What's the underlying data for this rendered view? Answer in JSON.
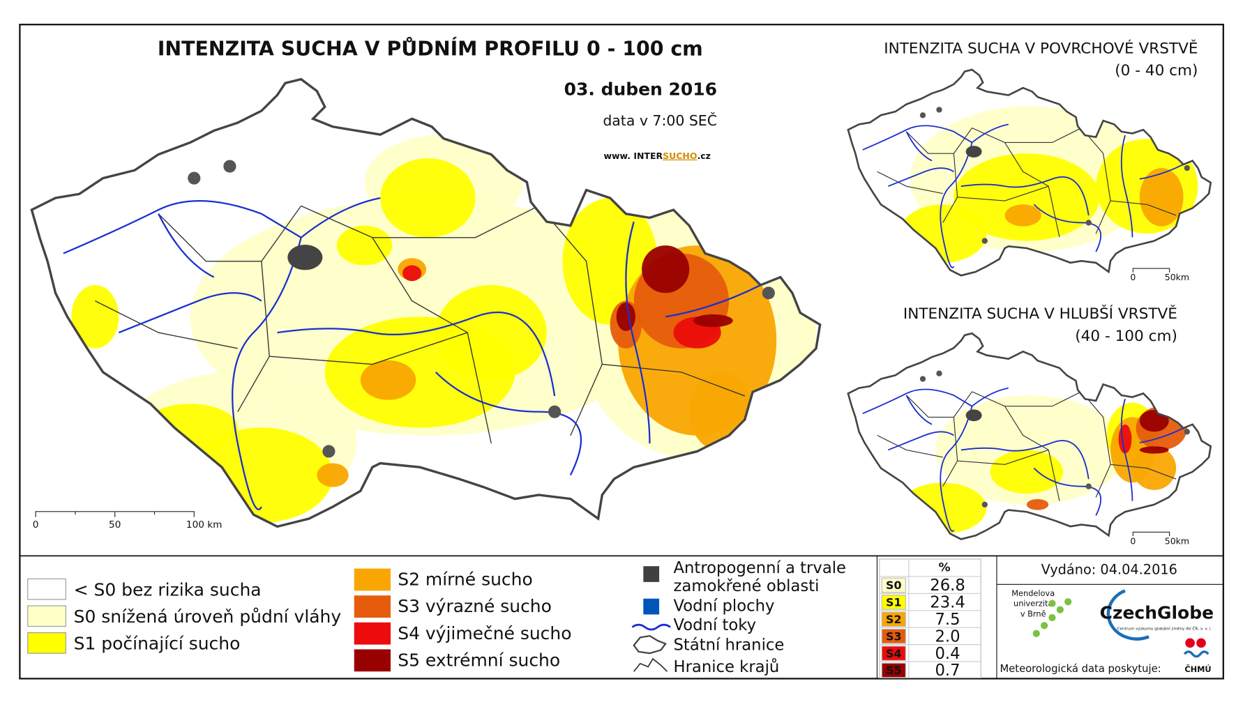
{
  "title": "INTENZITA SUCHA V PŮDNÍM PROFILU 0 - 100 cm",
  "date": "03. duben 2016",
  "time": "data v 7:00 SEČ",
  "website": {
    "prefix": "www. INTER",
    "highlight": "SUCHO",
    "suffix": ".cz"
  },
  "main_scale": [
    "0",
    "50",
    "100 km"
  ],
  "inset_top": {
    "title": "INTENZITA SUCHA V POVRCHOVÉ VRSTVĚ",
    "subtitle": "(0 - 40 cm)",
    "scale": [
      "0",
      "50km"
    ]
  },
  "inset_bottom": {
    "title": "INTENZITA SUCHA V HLUBŠÍ VRSTVĚ",
    "subtitle": "(40 - 100 cm)",
    "scale": [
      "0",
      "50km"
    ]
  },
  "legend_left": [
    {
      "label": "< S0 bez rizika sucha",
      "color": "#ffffff"
    },
    {
      "label": "S0 snížená úroveň půdní vláhy",
      "color": "#ffffc8"
    },
    {
      "label": "S1 počínající sucho",
      "color": "#ffff00"
    }
  ],
  "legend_mid": [
    {
      "label": "S2 mírné sucho",
      "color": "#f9a602"
    },
    {
      "label": "S3 výrazné sucho",
      "color": "#e65c0c"
    },
    {
      "label": "S4 výjimečné sucho",
      "color": "#ec0c0c"
    },
    {
      "label": "S5 extrémní sucho",
      "color": "#990000"
    }
  ],
  "legend_symbols": {
    "anthropogenic": [
      "Antropogenní a trvale",
      "zamokřené oblasti"
    ],
    "water_areas": "Vodní plochy",
    "rivers": "Vodní toky",
    "state_border": "Státní hranice",
    "region_border": "Hranice krajů"
  },
  "table": {
    "header": "%",
    "rows": [
      {
        "class": "S0",
        "value": "26.8",
        "color": "#ffffc8"
      },
      {
        "class": "S1",
        "value": "23.4",
        "color": "#ffff00"
      },
      {
        "class": "S2",
        "value": "7.5",
        "color": "#f9a602"
      },
      {
        "class": "S3",
        "value": "2.0",
        "color": "#e65c0c"
      },
      {
        "class": "S4",
        "value": "0.4",
        "color": "#ec0c0c"
      },
      {
        "class": "S5",
        "value": "0.7",
        "color": "#990000"
      }
    ]
  },
  "issued": "Vydáno: 04.04.2016",
  "logos": {
    "mendel": [
      "Mendelova",
      "univerzita",
      "v Brně"
    ],
    "czechglobe": "CzechGlobe",
    "czechglobe_sub": "Centrum výzkumu globální změny AV ČR, v. v. i.",
    "chmu": "ČHMÚ"
  },
  "provider": "Meteorologická data poskytuje:"
}
